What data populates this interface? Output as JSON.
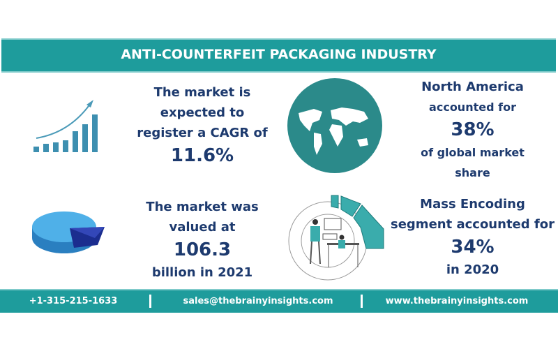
{
  "header": {
    "title": "ANTI-COUNTERFEIT PACKAGING INDUSTRY"
  },
  "cagr": {
    "lines": [
      "The market is",
      "expected to",
      "register a CAGR of"
    ],
    "value": "11.6%"
  },
  "region": {
    "line1": "North America",
    "line2": "accounted for",
    "value": "38%",
    "line3": "of global market",
    "line4": "share"
  },
  "valuation": {
    "lines": [
      "The market was",
      "valued at"
    ],
    "value": "106.3",
    "suffix": "billion in 2021"
  },
  "segment": {
    "line1": "Mass Encoding",
    "line2": "segment accounted for",
    "value": "34%",
    "suffix": "in 2020"
  },
  "footer": {
    "phone": "+1-315-215-1633",
    "email": "sales@thebrainyinsights.com",
    "website": "www.thebrainyinsights.com"
  },
  "colors": {
    "teal": "#1e9c9c",
    "navy": "#1d3a6e"
  },
  "icons": [
    "bar-chart-growth-icon",
    "world-map-icon",
    "pie-chart-3d-icon",
    "office-people-illustration-icon"
  ]
}
